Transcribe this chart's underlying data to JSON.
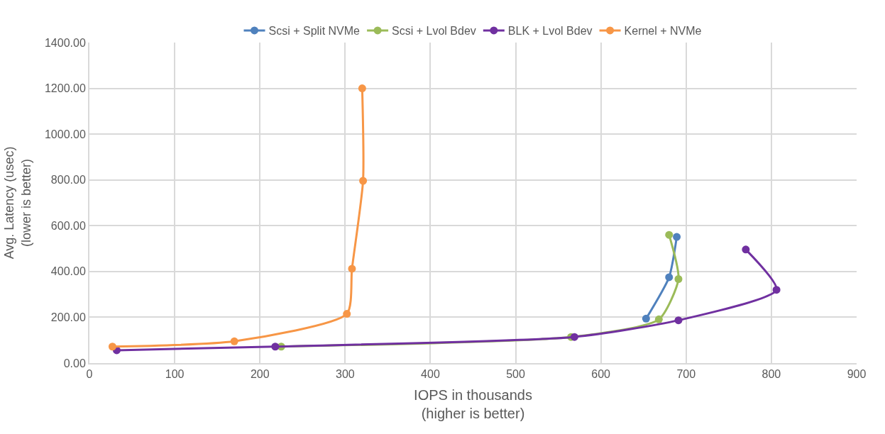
{
  "chart_data": {
    "type": "line",
    "xlabel": "IOPS in thousands\n(higher is better)",
    "ylabel": "Avg. Latency (usec)\n(lower is better)",
    "xlim": [
      0,
      900
    ],
    "xticks": [
      0,
      100,
      200,
      300,
      400,
      500,
      600,
      700,
      800,
      900
    ],
    "ylim": [
      0,
      1400
    ],
    "yticks": [
      {
        "value": 0,
        "label": "0.00"
      },
      {
        "value": 200,
        "label": "200.00"
      },
      {
        "value": 400,
        "label": "400.00"
      },
      {
        "value": 600,
        "label": "600.00"
      },
      {
        "value": 800,
        "label": "800.00"
      },
      {
        "value": 1000,
        "label": "1000.00"
      },
      {
        "value": 1200,
        "label": "1200.00"
      },
      {
        "value": 1400,
        "label": "1400.00"
      }
    ],
    "grid": true,
    "legend": "top",
    "marker": "circle",
    "line_style": "solid",
    "series": [
      {
        "name": "Scsi + Split NVMe",
        "color": "#4f81bd",
        "x": [
          653,
          680,
          689
        ],
        "values": [
          194,
          375,
          551
        ]
      },
      {
        "name": "Scsi + Lvol Bdev",
        "color": "#9bbb59",
        "x": [
          225,
          565,
          668,
          691,
          680
        ],
        "values": [
          72,
          114,
          191,
          367,
          560
        ]
      },
      {
        "name": "BLK + Lvol Bdev",
        "color": "#7030a0",
        "x": [
          32,
          218,
          569,
          691,
          806,
          770
        ],
        "values": [
          56,
          72,
          114,
          187,
          320,
          496
        ]
      },
      {
        "name": "Kernel + NVMe",
        "color": "#f79646",
        "x": [
          27,
          170,
          302,
          308,
          321,
          320
        ],
        "values": [
          72,
          95,
          215,
          412,
          796,
          1200
        ]
      }
    ]
  }
}
